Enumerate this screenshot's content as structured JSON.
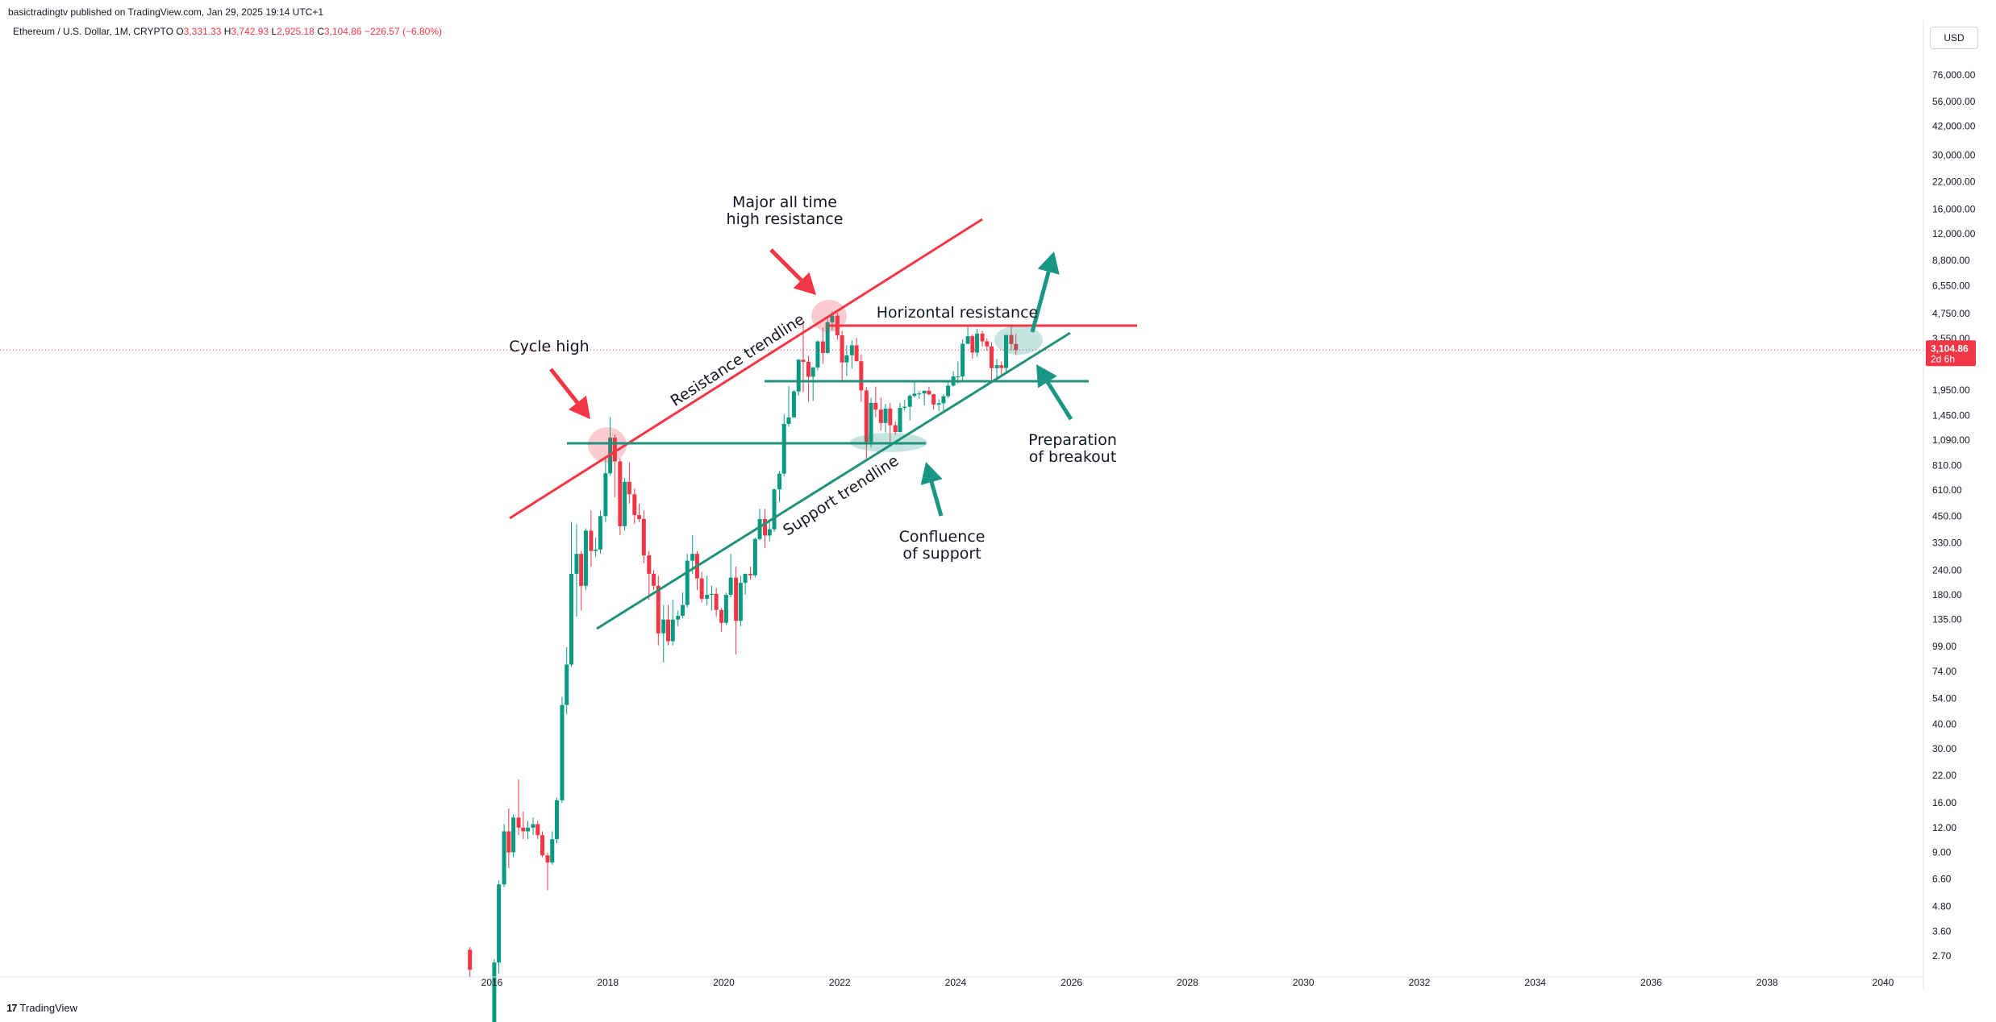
{
  "header": {
    "published": "basictradingtv published on TradingView.com, Jan 29, 2025 19:14 UTC+1",
    "symbol": "Ethereum / U.S. Dollar, 1M, CRYPTO",
    "o_label": "O",
    "o_value": "3,331.33",
    "h_label": "H",
    "h_value": "3,742.93",
    "l_label": "L",
    "l_value": "2,925.18",
    "c_label": "C",
    "c_value": "3,104.86",
    "change": "−226.57 (−6.80%)"
  },
  "currency": "USD",
  "footer": {
    "logo_text": "TradingView",
    "logo_mark": "17"
  },
  "colors": {
    "up": "#089981",
    "down": "#f23645",
    "resistance": "#f23645",
    "support": "#22917b",
    "arrow_red": "#f23645",
    "arrow_green": "#1a9685"
  },
  "chart_data": {
    "type": "candlestick",
    "scale": "log",
    "x_ticks": [
      "2016",
      "2018",
      "2020",
      "2022",
      "2024",
      "2026",
      "2028",
      "2030",
      "2032",
      "2034",
      "2036",
      "2038",
      "2040"
    ],
    "y_ticks": [
      "76,000.00",
      "56,000.00",
      "42,000.00",
      "30,000.00",
      "22,000.00",
      "16,000.00",
      "12,000.00",
      "8,800.00",
      "6,550.00",
      "4,750.00",
      "3,550.00",
      "1,950.00",
      "1,450.00",
      "1,090.00",
      "810.00",
      "610.00",
      "450.00",
      "330.00",
      "240.00",
      "180.00",
      "135.00",
      "99.00",
      "74.00",
      "54.00",
      "40.00",
      "30.00",
      "22.00",
      "16.00",
      "12.00",
      "9.00",
      "6.60",
      "4.80",
      "3.60",
      "2.70"
    ],
    "last_price": {
      "value": "3,104.86",
      "countdown": "2d 6h"
    },
    "candles": [
      {
        "t": 2015.62,
        "o": 2.9,
        "h": 3.0,
        "l": 2.1,
        "c": 2.3
      },
      {
        "t": 2016.04,
        "o": 0.95,
        "h": 2.6,
        "l": 0.9,
        "c": 2.5
      },
      {
        "t": 2016.12,
        "o": 2.5,
        "h": 6.5,
        "l": 2.2,
        "c": 6.2
      },
      {
        "t": 2016.21,
        "o": 6.2,
        "h": 12.5,
        "l": 6.0,
        "c": 11.5
      },
      {
        "t": 2016.29,
        "o": 11.5,
        "h": 15.0,
        "l": 7.5,
        "c": 9.0
      },
      {
        "t": 2016.37,
        "o": 9.0,
        "h": 14.0,
        "l": 8.5,
        "c": 13.5
      },
      {
        "t": 2016.46,
        "o": 13.5,
        "h": 21.0,
        "l": 11.0,
        "c": 12.0
      },
      {
        "t": 2016.54,
        "o": 12.0,
        "h": 14.5,
        "l": 10.5,
        "c": 11.5
      },
      {
        "t": 2016.62,
        "o": 11.5,
        "h": 13.0,
        "l": 10.5,
        "c": 12.0
      },
      {
        "t": 2016.71,
        "o": 12.0,
        "h": 13.5,
        "l": 11.0,
        "c": 12.5
      },
      {
        "t": 2016.79,
        "o": 12.5,
        "h": 13.0,
        "l": 10.5,
        "c": 11.0
      },
      {
        "t": 2016.87,
        "o": 11.0,
        "h": 11.5,
        "l": 8.5,
        "c": 8.7
      },
      {
        "t": 2016.96,
        "o": 8.7,
        "h": 9.0,
        "l": 5.8,
        "c": 8.0
      },
      {
        "t": 2017.04,
        "o": 8.0,
        "h": 11.5,
        "l": 7.8,
        "c": 10.5
      },
      {
        "t": 2017.12,
        "o": 10.5,
        "h": 17.0,
        "l": 10.0,
        "c": 16.5
      },
      {
        "t": 2017.21,
        "o": 16.5,
        "h": 55.0,
        "l": 16.0,
        "c": 50.0
      },
      {
        "t": 2017.29,
        "o": 50.0,
        "h": 98.0,
        "l": 45.0,
        "c": 80.0
      },
      {
        "t": 2017.37,
        "o": 80.0,
        "h": 420.0,
        "l": 78.0,
        "c": 230.0
      },
      {
        "t": 2017.46,
        "o": 230.0,
        "h": 410.0,
        "l": 140.0,
        "c": 290.0
      },
      {
        "t": 2017.54,
        "o": 290.0,
        "h": 300.0,
        "l": 150.0,
        "c": 200.0
      },
      {
        "t": 2017.62,
        "o": 200.0,
        "h": 390.0,
        "l": 190.0,
        "c": 380.0
      },
      {
        "t": 2017.71,
        "o": 380.0,
        "h": 480.0,
        "l": 250.0,
        "c": 300.0
      },
      {
        "t": 2017.79,
        "o": 300.0,
        "h": 350.0,
        "l": 280.0,
        "c": 305.0
      },
      {
        "t": 2017.87,
        "o": 305.0,
        "h": 480.0,
        "l": 290.0,
        "c": 450.0
      },
      {
        "t": 2017.96,
        "o": 450.0,
        "h": 880.0,
        "l": 420.0,
        "c": 740.0
      },
      {
        "t": 2018.04,
        "o": 740.0,
        "h": 1420.0,
        "l": 720.0,
        "c": 1120.0
      },
      {
        "t": 2018.12,
        "o": 1120.0,
        "h": 1160.0,
        "l": 560.0,
        "c": 850.0
      },
      {
        "t": 2018.21,
        "o": 850.0,
        "h": 880.0,
        "l": 360.0,
        "c": 400.0
      },
      {
        "t": 2018.29,
        "o": 400.0,
        "h": 700.0,
        "l": 380.0,
        "c": 670.0
      },
      {
        "t": 2018.37,
        "o": 670.0,
        "h": 840.0,
        "l": 520.0,
        "c": 580.0
      },
      {
        "t": 2018.46,
        "o": 580.0,
        "h": 620.0,
        "l": 410.0,
        "c": 455.0
      },
      {
        "t": 2018.54,
        "o": 455.0,
        "h": 520.0,
        "l": 420.0,
        "c": 435.0
      },
      {
        "t": 2018.62,
        "o": 435.0,
        "h": 480.0,
        "l": 260.0,
        "c": 285.0
      },
      {
        "t": 2018.71,
        "o": 285.0,
        "h": 300.0,
        "l": 170.0,
        "c": 230.0
      },
      {
        "t": 2018.79,
        "o": 230.0,
        "h": 240.0,
        "l": 190.0,
        "c": 200.0
      },
      {
        "t": 2018.87,
        "o": 200.0,
        "h": 225.0,
        "l": 100.0,
        "c": 115.0
      },
      {
        "t": 2018.96,
        "o": 115.0,
        "h": 160.0,
        "l": 82.0,
        "c": 135.0
      },
      {
        "t": 2019.04,
        "o": 135.0,
        "h": 160.0,
        "l": 100.0,
        "c": 105.0
      },
      {
        "t": 2019.12,
        "o": 105.0,
        "h": 170.0,
        "l": 100.0,
        "c": 135.0
      },
      {
        "t": 2019.21,
        "o": 135.0,
        "h": 150.0,
        "l": 125.0,
        "c": 141.0
      },
      {
        "t": 2019.29,
        "o": 141.0,
        "h": 185.0,
        "l": 137.0,
        "c": 160.0
      },
      {
        "t": 2019.37,
        "o": 160.0,
        "h": 290.0,
        "l": 155.0,
        "c": 268.0
      },
      {
        "t": 2019.46,
        "o": 268.0,
        "h": 360.0,
        "l": 230.0,
        "c": 290.0
      },
      {
        "t": 2019.54,
        "o": 290.0,
        "h": 300.0,
        "l": 190.0,
        "c": 218.0
      },
      {
        "t": 2019.62,
        "o": 218.0,
        "h": 235.0,
        "l": 165.0,
        "c": 172.0
      },
      {
        "t": 2019.71,
        "o": 172.0,
        "h": 225.0,
        "l": 160.0,
        "c": 180.0
      },
      {
        "t": 2019.79,
        "o": 180.0,
        "h": 200.0,
        "l": 150.0,
        "c": 182.0
      },
      {
        "t": 2019.87,
        "o": 182.0,
        "h": 195.0,
        "l": 140.0,
        "c": 151.0
      },
      {
        "t": 2019.96,
        "o": 151.0,
        "h": 155.0,
        "l": 117.0,
        "c": 130.0
      },
      {
        "t": 2020.04,
        "o": 130.0,
        "h": 185.0,
        "l": 127.0,
        "c": 180.0
      },
      {
        "t": 2020.12,
        "o": 180.0,
        "h": 290.0,
        "l": 175.0,
        "c": 220.0
      },
      {
        "t": 2020.21,
        "o": 220.0,
        "h": 250.0,
        "l": 90.0,
        "c": 133.0
      },
      {
        "t": 2020.29,
        "o": 133.0,
        "h": 225.0,
        "l": 125.0,
        "c": 207.0
      },
      {
        "t": 2020.37,
        "o": 207.0,
        "h": 230.0,
        "l": 180.0,
        "c": 230.0
      },
      {
        "t": 2020.46,
        "o": 230.0,
        "h": 250.0,
        "l": 215.0,
        "c": 226.0
      },
      {
        "t": 2020.54,
        "o": 226.0,
        "h": 350.0,
        "l": 220.0,
        "c": 345.0
      },
      {
        "t": 2020.62,
        "o": 345.0,
        "h": 490.0,
        "l": 340.0,
        "c": 435.0
      },
      {
        "t": 2020.71,
        "o": 435.0,
        "h": 490.0,
        "l": 310.0,
        "c": 359.0
      },
      {
        "t": 2020.79,
        "o": 359.0,
        "h": 420.0,
        "l": 335.0,
        "c": 386.0
      },
      {
        "t": 2020.87,
        "o": 386.0,
        "h": 620.0,
        "l": 375.0,
        "c": 614.0
      },
      {
        "t": 2020.96,
        "o": 614.0,
        "h": 760.0,
        "l": 530.0,
        "c": 737.0
      },
      {
        "t": 2021.04,
        "o": 737.0,
        "h": 1470.0,
        "l": 715.0,
        "c": 1315.0
      },
      {
        "t": 2021.12,
        "o": 1315.0,
        "h": 2040.0,
        "l": 1275.0,
        "c": 1418.0
      },
      {
        "t": 2021.21,
        "o": 1418.0,
        "h": 1950.0,
        "l": 1420.0,
        "c": 1918.0
      },
      {
        "t": 2021.29,
        "o": 1918.0,
        "h": 2800.0,
        "l": 1830.0,
        "c": 2773.0
      },
      {
        "t": 2021.37,
        "o": 2773.0,
        "h": 4380.0,
        "l": 1900.0,
        "c": 2706.0
      },
      {
        "t": 2021.46,
        "o": 2706.0,
        "h": 2890.0,
        "l": 1700.0,
        "c": 2275.0
      },
      {
        "t": 2021.54,
        "o": 2275.0,
        "h": 2550.0,
        "l": 1720.0,
        "c": 2536.0
      },
      {
        "t": 2021.62,
        "o": 2536.0,
        "h": 3470.0,
        "l": 2450.0,
        "c": 3433.0
      },
      {
        "t": 2021.71,
        "o": 3433.0,
        "h": 4030.0,
        "l": 2650.0,
        "c": 3001.0
      },
      {
        "t": 2021.79,
        "o": 3001.0,
        "h": 4460.0,
        "l": 2970.0,
        "c": 4288.0
      },
      {
        "t": 2021.87,
        "o": 4288.0,
        "h": 4870.0,
        "l": 3900.0,
        "c": 4631.0
      },
      {
        "t": 2021.96,
        "o": 4631.0,
        "h": 4780.0,
        "l": 3500.0,
        "c": 3683.0
      },
      {
        "t": 2022.04,
        "o": 3683.0,
        "h": 3880.0,
        "l": 2160.0,
        "c": 2688.0
      },
      {
        "t": 2022.12,
        "o": 2688.0,
        "h": 3280.0,
        "l": 2300.0,
        "c": 2920.0
      },
      {
        "t": 2022.21,
        "o": 2920.0,
        "h": 3480.0,
        "l": 2500.0,
        "c": 3282.0
      },
      {
        "t": 2022.29,
        "o": 3282.0,
        "h": 3580.0,
        "l": 2720.0,
        "c": 2726.0
      },
      {
        "t": 2022.37,
        "o": 2726.0,
        "h": 2950.0,
        "l": 1700.0,
        "c": 1940.0
      },
      {
        "t": 2022.46,
        "o": 1940.0,
        "h": 2020.0,
        "l": 880.0,
        "c": 1067.0
      },
      {
        "t": 2022.54,
        "o": 1067.0,
        "h": 1780.0,
        "l": 1000.0,
        "c": 1680.0
      },
      {
        "t": 2022.62,
        "o": 1680.0,
        "h": 2030.0,
        "l": 1420.0,
        "c": 1553.0
      },
      {
        "t": 2022.71,
        "o": 1553.0,
        "h": 1790.0,
        "l": 1220.0,
        "c": 1328.0
      },
      {
        "t": 2022.79,
        "o": 1328.0,
        "h": 1660.0,
        "l": 1190.0,
        "c": 1572.0
      },
      {
        "t": 2022.87,
        "o": 1572.0,
        "h": 1680.0,
        "l": 1070.0,
        "c": 1295.0
      },
      {
        "t": 2022.96,
        "o": 1295.0,
        "h": 1350.0,
        "l": 1160.0,
        "c": 1196.0
      },
      {
        "t": 2023.04,
        "o": 1196.0,
        "h": 1680.0,
        "l": 1190.0,
        "c": 1585.0
      },
      {
        "t": 2023.12,
        "o": 1585.0,
        "h": 1740.0,
        "l": 1540.0,
        "c": 1605.0
      },
      {
        "t": 2023.21,
        "o": 1605.0,
        "h": 1850.0,
        "l": 1370.0,
        "c": 1822.0
      },
      {
        "t": 2023.29,
        "o": 1822.0,
        "h": 2140.0,
        "l": 1790.0,
        "c": 1870.0
      },
      {
        "t": 2023.37,
        "o": 1870.0,
        "h": 1930.0,
        "l": 1760.0,
        "c": 1874.0
      },
      {
        "t": 2023.46,
        "o": 1874.0,
        "h": 1930.0,
        "l": 1630.0,
        "c": 1934.0
      },
      {
        "t": 2023.54,
        "o": 1934.0,
        "h": 2030.0,
        "l": 1830.0,
        "c": 1856.0
      },
      {
        "t": 2023.62,
        "o": 1856.0,
        "h": 1870.0,
        "l": 1550.0,
        "c": 1646.0
      },
      {
        "t": 2023.71,
        "o": 1646.0,
        "h": 1750.0,
        "l": 1530.0,
        "c": 1671.0
      },
      {
        "t": 2023.79,
        "o": 1671.0,
        "h": 1860.0,
        "l": 1520.0,
        "c": 1814.0
      },
      {
        "t": 2023.87,
        "o": 1814.0,
        "h": 2140.0,
        "l": 1780.0,
        "c": 2052.0
      },
      {
        "t": 2023.96,
        "o": 2052.0,
        "h": 2420.0,
        "l": 2030.0,
        "c": 2282.0
      },
      {
        "t": 2024.04,
        "o": 2282.0,
        "h": 2720.0,
        "l": 2100.0,
        "c": 2283.0
      },
      {
        "t": 2024.12,
        "o": 2283.0,
        "h": 3520.0,
        "l": 2170.0,
        "c": 3340.0
      },
      {
        "t": 2024.21,
        "o": 3340.0,
        "h": 4090.0,
        "l": 3320.0,
        "c": 3646.0
      },
      {
        "t": 2024.29,
        "o": 3646.0,
        "h": 3720.0,
        "l": 2810.0,
        "c": 3012.0
      },
      {
        "t": 2024.37,
        "o": 3012.0,
        "h": 3980.0,
        "l": 2870.0,
        "c": 3760.0
      },
      {
        "t": 2024.46,
        "o": 3760.0,
        "h": 3890.0,
        "l": 3230.0,
        "c": 3437.0
      },
      {
        "t": 2024.54,
        "o": 3437.0,
        "h": 3560.0,
        "l": 3080.0,
        "c": 3240.0
      },
      {
        "t": 2024.62,
        "o": 3240.0,
        "h": 3400.0,
        "l": 2120.0,
        "c": 2513.0
      },
      {
        "t": 2024.71,
        "o": 2513.0,
        "h": 2800.0,
        "l": 2150.0,
        "c": 2602.0
      },
      {
        "t": 2024.79,
        "o": 2602.0,
        "h": 2720.0,
        "l": 2310.0,
        "c": 2518.0
      },
      {
        "t": 2024.87,
        "o": 2518.0,
        "h": 3700.0,
        "l": 2360.0,
        "c": 3700.0
      },
      {
        "t": 2024.96,
        "o": 3700.0,
        "h": 4110.0,
        "l": 3090.0,
        "c": 3331.0
      },
      {
        "t": 2025.04,
        "o": 3331.33,
        "h": 3742.93,
        "l": 2925.18,
        "c": 3104.86
      }
    ],
    "annotations": {
      "major_ath": "Major all time\nhigh resistance",
      "horizontal_resistance": "Horizontal resistance",
      "cycle_high": "Cycle high",
      "resistance_trendline": "Resistance trendline",
      "support_trendline": "Support trendline",
      "preparation": "Preparation\nof breakout",
      "confluence": "Confluence\nof support"
    }
  }
}
